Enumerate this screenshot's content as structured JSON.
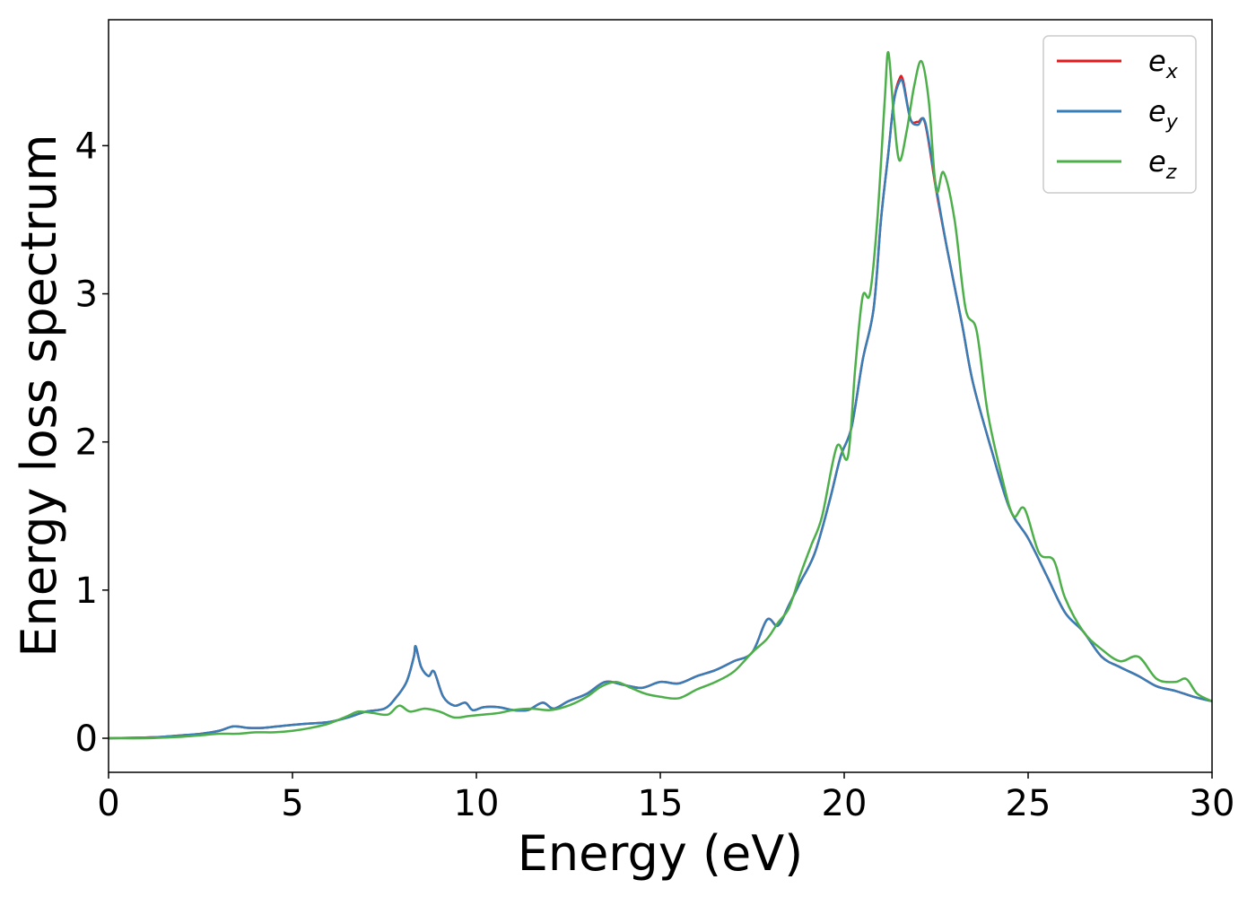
{
  "chart_data": {
    "type": "line",
    "title": "",
    "xlabel": "Energy (eV)",
    "ylabel": "Energy loss spectrum",
    "xlim": [
      0,
      30
    ],
    "ylim": [
      -0.23,
      4.85
    ],
    "xticks": [
      0,
      5,
      10,
      15,
      20,
      25,
      30
    ],
    "xtick_labels": [
      "0",
      "5",
      "10",
      "15",
      "20",
      "25",
      "30"
    ],
    "yticks": [
      0,
      1,
      2,
      3,
      4
    ],
    "ytick_labels": [
      "0",
      "1",
      "2",
      "3",
      "4"
    ],
    "grid": false,
    "legend_position": "top-right",
    "series": [
      {
        "name": "e_x",
        "legend_base": "e",
        "legend_sub": "x",
        "color": "#e41a1c",
        "points": [
          [
            0,
            0
          ],
          [
            1,
            0.005
          ],
          [
            1.5,
            0.01
          ],
          [
            2,
            0.02
          ],
          [
            2.5,
            0.03
          ],
          [
            3,
            0.05
          ],
          [
            3.4,
            0.08
          ],
          [
            3.8,
            0.07
          ],
          [
            4.2,
            0.07
          ],
          [
            4.6,
            0.08
          ],
          [
            5,
            0.09
          ],
          [
            5.5,
            0.1
          ],
          [
            6,
            0.11
          ],
          [
            6.5,
            0.14
          ],
          [
            7,
            0.18
          ],
          [
            7.5,
            0.2
          ],
          [
            7.8,
            0.27
          ],
          [
            8.1,
            0.38
          ],
          [
            8.3,
            0.55
          ],
          [
            8.35,
            0.62
          ],
          [
            8.5,
            0.48
          ],
          [
            8.7,
            0.42
          ],
          [
            8.85,
            0.45
          ],
          [
            9.1,
            0.28
          ],
          [
            9.4,
            0.22
          ],
          [
            9.7,
            0.24
          ],
          [
            9.9,
            0.19
          ],
          [
            10.2,
            0.21
          ],
          [
            10.6,
            0.21
          ],
          [
            11,
            0.19
          ],
          [
            11.4,
            0.19
          ],
          [
            11.8,
            0.24
          ],
          [
            12.1,
            0.2
          ],
          [
            12.5,
            0.25
          ],
          [
            13,
            0.3
          ],
          [
            13.5,
            0.38
          ],
          [
            14,
            0.36
          ],
          [
            14.5,
            0.34
          ],
          [
            15,
            0.38
          ],
          [
            15.5,
            0.37
          ],
          [
            16,
            0.42
          ],
          [
            16.5,
            0.46
          ],
          [
            17,
            0.52
          ],
          [
            17.5,
            0.58
          ],
          [
            17.9,
            0.8
          ],
          [
            18.2,
            0.76
          ],
          [
            18.5,
            0.9
          ],
          [
            18.8,
            1.05
          ],
          [
            19.2,
            1.25
          ],
          [
            19.6,
            1.6
          ],
          [
            19.9,
            1.9
          ],
          [
            20.2,
            2.1
          ],
          [
            20.5,
            2.55
          ],
          [
            20.8,
            2.9
          ],
          [
            21.0,
            3.5
          ],
          [
            21.2,
            3.95
          ],
          [
            21.35,
            4.3
          ],
          [
            21.5,
            4.45
          ],
          [
            21.6,
            4.44
          ],
          [
            21.8,
            4.18
          ],
          [
            22.0,
            4.16
          ],
          [
            22.2,
            4.15
          ],
          [
            22.5,
            3.7
          ],
          [
            22.8,
            3.3
          ],
          [
            23.2,
            2.8
          ],
          [
            23.5,
            2.4
          ],
          [
            24.0,
            1.95
          ],
          [
            24.5,
            1.55
          ],
          [
            25.0,
            1.35
          ],
          [
            25.5,
            1.1
          ],
          [
            26.0,
            0.85
          ],
          [
            26.5,
            0.72
          ],
          [
            27,
            0.55
          ],
          [
            27.5,
            0.48
          ],
          [
            28,
            0.42
          ],
          [
            28.5,
            0.35
          ],
          [
            29,
            0.32
          ],
          [
            29.5,
            0.28
          ],
          [
            30,
            0.25
          ]
        ]
      },
      {
        "name": "e_y",
        "legend_base": "e",
        "legend_sub": "y",
        "color": "#377eb8",
        "points": [
          [
            0,
            0
          ],
          [
            1,
            0.005
          ],
          [
            1.5,
            0.01
          ],
          [
            2,
            0.02
          ],
          [
            2.5,
            0.03
          ],
          [
            3,
            0.05
          ],
          [
            3.4,
            0.08
          ],
          [
            3.8,
            0.07
          ],
          [
            4.2,
            0.07
          ],
          [
            4.6,
            0.08
          ],
          [
            5,
            0.09
          ],
          [
            5.5,
            0.1
          ],
          [
            6,
            0.11
          ],
          [
            6.5,
            0.14
          ],
          [
            7,
            0.18
          ],
          [
            7.5,
            0.2
          ],
          [
            7.8,
            0.27
          ],
          [
            8.1,
            0.38
          ],
          [
            8.3,
            0.55
          ],
          [
            8.35,
            0.62
          ],
          [
            8.5,
            0.48
          ],
          [
            8.7,
            0.42
          ],
          [
            8.85,
            0.45
          ],
          [
            9.1,
            0.28
          ],
          [
            9.4,
            0.22
          ],
          [
            9.7,
            0.24
          ],
          [
            9.9,
            0.19
          ],
          [
            10.2,
            0.21
          ],
          [
            10.6,
            0.21
          ],
          [
            11,
            0.19
          ],
          [
            11.4,
            0.19
          ],
          [
            11.8,
            0.24
          ],
          [
            12.1,
            0.2
          ],
          [
            12.5,
            0.25
          ],
          [
            13,
            0.3
          ],
          [
            13.5,
            0.38
          ],
          [
            14,
            0.36
          ],
          [
            14.5,
            0.34
          ],
          [
            15,
            0.38
          ],
          [
            15.5,
            0.37
          ],
          [
            16,
            0.42
          ],
          [
            16.5,
            0.46
          ],
          [
            17,
            0.52
          ],
          [
            17.5,
            0.58
          ],
          [
            17.9,
            0.8
          ],
          [
            18.2,
            0.76
          ],
          [
            18.5,
            0.9
          ],
          [
            18.8,
            1.05
          ],
          [
            19.2,
            1.25
          ],
          [
            19.6,
            1.6
          ],
          [
            19.9,
            1.9
          ],
          [
            20.2,
            2.1
          ],
          [
            20.5,
            2.55
          ],
          [
            20.8,
            2.9
          ],
          [
            21.0,
            3.5
          ],
          [
            21.2,
            3.95
          ],
          [
            21.35,
            4.3
          ],
          [
            21.5,
            4.43
          ],
          [
            21.6,
            4.42
          ],
          [
            21.8,
            4.18
          ],
          [
            22.0,
            4.14
          ],
          [
            22.2,
            4.16
          ],
          [
            22.5,
            3.72
          ],
          [
            22.8,
            3.3
          ],
          [
            23.2,
            2.8
          ],
          [
            23.5,
            2.4
          ],
          [
            24.0,
            1.95
          ],
          [
            24.5,
            1.55
          ],
          [
            25.0,
            1.35
          ],
          [
            25.5,
            1.1
          ],
          [
            26.0,
            0.85
          ],
          [
            26.5,
            0.72
          ],
          [
            27,
            0.55
          ],
          [
            27.5,
            0.48
          ],
          [
            28,
            0.42
          ],
          [
            28.5,
            0.35
          ],
          [
            29,
            0.32
          ],
          [
            29.5,
            0.28
          ],
          [
            30,
            0.25
          ]
        ]
      },
      {
        "name": "e_z",
        "legend_base": "e",
        "legend_sub": "z",
        "color": "#4daf4a",
        "points": [
          [
            0,
            0
          ],
          [
            1,
            0.0
          ],
          [
            1.5,
            0.005
          ],
          [
            2,
            0.01
          ],
          [
            2.5,
            0.02
          ],
          [
            3,
            0.03
          ],
          [
            3.5,
            0.03
          ],
          [
            4,
            0.04
          ],
          [
            4.5,
            0.04
          ],
          [
            5,
            0.05
          ],
          [
            5.5,
            0.07
          ],
          [
            6,
            0.1
          ],
          [
            6.5,
            0.15
          ],
          [
            6.8,
            0.18
          ],
          [
            7.2,
            0.17
          ],
          [
            7.6,
            0.16
          ],
          [
            7.9,
            0.22
          ],
          [
            8.2,
            0.18
          ],
          [
            8.6,
            0.2
          ],
          [
            9,
            0.18
          ],
          [
            9.4,
            0.14
          ],
          [
            9.8,
            0.15
          ],
          [
            10.2,
            0.16
          ],
          [
            10.6,
            0.17
          ],
          [
            11,
            0.19
          ],
          [
            11.5,
            0.2
          ],
          [
            12,
            0.19
          ],
          [
            12.5,
            0.22
          ],
          [
            13,
            0.28
          ],
          [
            13.4,
            0.35
          ],
          [
            13.8,
            0.38
          ],
          [
            14.2,
            0.34
          ],
          [
            14.6,
            0.3
          ],
          [
            15,
            0.28
          ],
          [
            15.5,
            0.27
          ],
          [
            16,
            0.33
          ],
          [
            16.5,
            0.38
          ],
          [
            17,
            0.45
          ],
          [
            17.5,
            0.58
          ],
          [
            17.9,
            0.67
          ],
          [
            18.2,
            0.78
          ],
          [
            18.5,
            0.88
          ],
          [
            18.8,
            1.1
          ],
          [
            19.1,
            1.3
          ],
          [
            19.4,
            1.5
          ],
          [
            19.8,
            1.97
          ],
          [
            20.1,
            1.9
          ],
          [
            20.3,
            2.5
          ],
          [
            20.5,
            2.98
          ],
          [
            20.7,
            3.0
          ],
          [
            20.9,
            3.5
          ],
          [
            21.1,
            4.3
          ],
          [
            21.2,
            4.63
          ],
          [
            21.35,
            4.2
          ],
          [
            21.5,
            3.9
          ],
          [
            21.7,
            4.1
          ],
          [
            21.9,
            4.4
          ],
          [
            22.1,
            4.57
          ],
          [
            22.3,
            4.3
          ],
          [
            22.5,
            3.7
          ],
          [
            22.7,
            3.82
          ],
          [
            23.0,
            3.5
          ],
          [
            23.3,
            2.9
          ],
          [
            23.6,
            2.75
          ],
          [
            23.9,
            2.2
          ],
          [
            24.3,
            1.75
          ],
          [
            24.6,
            1.5
          ],
          [
            24.9,
            1.55
          ],
          [
            25.3,
            1.25
          ],
          [
            25.7,
            1.2
          ],
          [
            26.0,
            0.95
          ],
          [
            26.5,
            0.72
          ],
          [
            27,
            0.6
          ],
          [
            27.5,
            0.52
          ],
          [
            28,
            0.55
          ],
          [
            28.5,
            0.4
          ],
          [
            29,
            0.38
          ],
          [
            29.3,
            0.4
          ],
          [
            29.6,
            0.3
          ],
          [
            30,
            0.25
          ]
        ]
      }
    ]
  }
}
